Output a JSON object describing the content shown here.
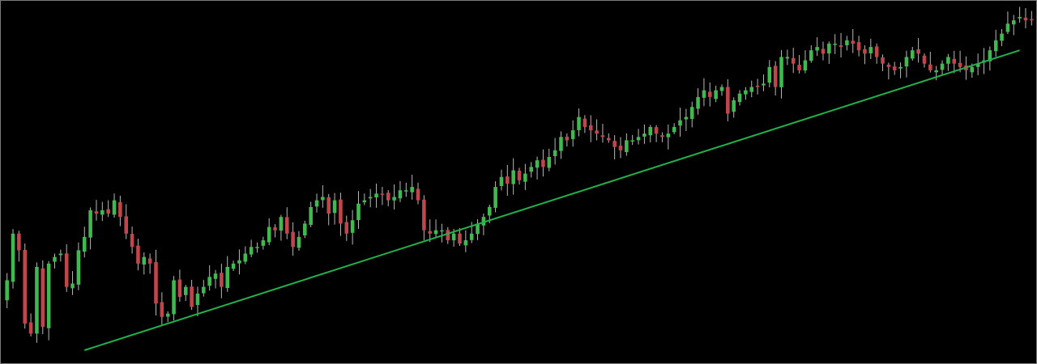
{
  "chart_data": {
    "type": "candlestick",
    "title": "",
    "xlabel": "",
    "ylabel": "",
    "ylim": [
      0,
      100
    ],
    "grid": false,
    "legend": "none",
    "colors": {
      "background": "#000000",
      "bullish": "#3fb950",
      "bearish": "#c0464c",
      "wick": "#b8b8b8",
      "trendline": "#22b04a",
      "frame": "#7a7a7a"
    },
    "closes": [
      21,
      35,
      30,
      8,
      5,
      25,
      7,
      26,
      28,
      29,
      19,
      20,
      30,
      34,
      42,
      41,
      42,
      41,
      45,
      40,
      35,
      31,
      26,
      28,
      26,
      14,
      10,
      11,
      21,
      16,
      19,
      13,
      17,
      19,
      22,
      23,
      19,
      25,
      26,
      27,
      29,
      31,
      31,
      33,
      37,
      36,
      40,
      35,
      31,
      34,
      38,
      43,
      45,
      46,
      41,
      45,
      38,
      35,
      39,
      44,
      45,
      46,
      47,
      47,
      45,
      46,
      48,
      48,
      49,
      45,
      36,
      35,
      36,
      36,
      33,
      35,
      32,
      33,
      35,
      38,
      40,
      43,
      49,
      52,
      50,
      54,
      51,
      53,
      55,
      57,
      55,
      58,
      60,
      64,
      63,
      66,
      70,
      67,
      66,
      65,
      64,
      63,
      61,
      60,
      63,
      63,
      64,
      65,
      67,
      65,
      64,
      65,
      67,
      69,
      70,
      73,
      76,
      78,
      76,
      78,
      79,
      71,
      75,
      77,
      78,
      79,
      79,
      80,
      85,
      79,
      88,
      88,
      86,
      84,
      87,
      90,
      91,
      89,
      92,
      92,
      91,
      93,
      92,
      90,
      89,
      91,
      88,
      86,
      85,
      84,
      85,
      88,
      90,
      89,
      86,
      84,
      84,
      86,
      88,
      86,
      85,
      84,
      85,
      86,
      87,
      90,
      93,
      95,
      98,
      99,
      100,
      99,
      99
    ],
    "trendline": {
      "from_index": 13,
      "from_value": 0,
      "to_index": 170,
      "to_value": 90
    }
  }
}
